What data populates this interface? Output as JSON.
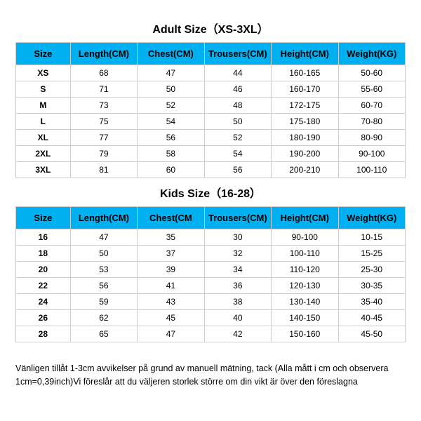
{
  "adult": {
    "title": "Adult Size（XS-3XL）",
    "columns": [
      "Size",
      "Length(CM)",
      "Chest(CM)",
      "Trousers(CM)",
      "Height(CM)",
      "Weight(KG)"
    ],
    "rows": [
      [
        "XS",
        "68",
        "47",
        "44",
        "160-165",
        "50-60"
      ],
      [
        "S",
        "71",
        "50",
        "46",
        "160-170",
        "55-60"
      ],
      [
        "M",
        "73",
        "52",
        "48",
        "172-175",
        "60-70"
      ],
      [
        "L",
        "75",
        "54",
        "50",
        "175-180",
        "70-80"
      ],
      [
        "XL",
        "77",
        "56",
        "52",
        "180-190",
        "80-90"
      ],
      [
        "2XL",
        "79",
        "58",
        "54",
        "190-200",
        "90-100"
      ],
      [
        "3XL",
        "81",
        "60",
        "56",
        "200-210",
        "100-110"
      ]
    ]
  },
  "kids": {
    "title": "Kids Size（16-28）",
    "columns": [
      "Size",
      "Length(CM)",
      "Chest(CM",
      "Trousers(CM)",
      "Height(CM)",
      "Weight(KG)"
    ],
    "rows": [
      [
        "16",
        "47",
        "35",
        "30",
        "90-100",
        "10-15"
      ],
      [
        "18",
        "50",
        "37",
        "32",
        "100-110",
        "15-25"
      ],
      [
        "20",
        "53",
        "39",
        "34",
        "110-120",
        "25-30"
      ],
      [
        "22",
        "56",
        "41",
        "36",
        "120-130",
        "30-35"
      ],
      [
        "24",
        "59",
        "43",
        "38",
        "130-140",
        "35-40"
      ],
      [
        "26",
        "62",
        "45",
        "40",
        "140-150",
        "40-45"
      ],
      [
        "28",
        "65",
        "47",
        "42",
        "150-160",
        "45-50"
      ]
    ]
  },
  "note": "Vänligen tillåt 1-3cm avvikelser på grund av manuell mätning, tack (Alla mått i cm och observera 1cm=0,39inch)Vi föreslår att du väljeren storlek större om din vikt är över den föreslagna",
  "style": {
    "header_bg": "#00b0f0",
    "border_color": "#cccccc",
    "text_color": "#000000",
    "col_widths": [
      "14%",
      "17.2%",
      "17.2%",
      "17.2%",
      "17.2%",
      "17.2%"
    ]
  }
}
